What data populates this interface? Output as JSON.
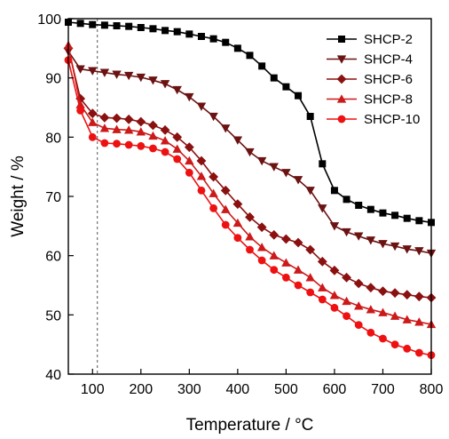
{
  "chart_data": {
    "type": "line",
    "xlabel": "Temperature / °C",
    "ylabel": "Weight / %",
    "xlim": [
      50,
      800
    ],
    "ylim": [
      40,
      100
    ],
    "xticks": [
      100,
      200,
      300,
      400,
      500,
      600,
      700,
      800
    ],
    "yticks": [
      40,
      50,
      60,
      70,
      80,
      90,
      100
    ],
    "grid": false,
    "legend_position": "top-right",
    "reference_line": {
      "x": 110,
      "style": "dashed"
    },
    "series": [
      {
        "name": "SHCP-2",
        "color": "#000000",
        "marker": "square",
        "x": [
          50,
          75,
          100,
          125,
          150,
          175,
          200,
          225,
          250,
          275,
          300,
          325,
          350,
          375,
          400,
          425,
          450,
          475,
          500,
          525,
          550,
          575,
          600,
          625,
          650,
          675,
          700,
          725,
          750,
          775,
          800
        ],
        "y": [
          99.4,
          99.2,
          99.0,
          98.9,
          98.8,
          98.7,
          98.5,
          98.3,
          98.0,
          97.8,
          97.4,
          97.0,
          96.6,
          96.0,
          95.0,
          93.8,
          92.0,
          90.0,
          88.5,
          87.0,
          83.5,
          75.5,
          71.0,
          69.5,
          68.5,
          67.8,
          67.2,
          66.8,
          66.3,
          65.9,
          65.6
        ]
      },
      {
        "name": "SHCP-4",
        "color": "#6b1212",
        "marker": "triangle-down",
        "x": [
          50,
          75,
          100,
          125,
          150,
          175,
          200,
          225,
          250,
          275,
          300,
          325,
          350,
          375,
          400,
          425,
          450,
          475,
          500,
          525,
          550,
          575,
          600,
          625,
          650,
          675,
          700,
          725,
          750,
          775,
          800
        ],
        "y": [
          94.5,
          91.5,
          91.2,
          90.9,
          90.6,
          90.4,
          90.1,
          89.6,
          89.0,
          88.0,
          86.8,
          85.2,
          83.5,
          81.5,
          79.5,
          77.5,
          76.0,
          75.0,
          74.0,
          72.8,
          71.0,
          68.0,
          65.0,
          64.0,
          63.3,
          62.6,
          62.0,
          61.6,
          61.1,
          60.8,
          60.4
        ]
      },
      {
        "name": "SHCP-6",
        "color": "#8b1010",
        "marker": "diamond",
        "x": [
          50,
          75,
          100,
          125,
          150,
          175,
          200,
          225,
          250,
          275,
          300,
          325,
          350,
          375,
          400,
          425,
          450,
          475,
          500,
          525,
          550,
          575,
          600,
          625,
          650,
          675,
          700,
          725,
          750,
          775,
          800
        ],
        "y": [
          95.0,
          86.5,
          84.0,
          83.3,
          83.2,
          83.0,
          82.6,
          82.0,
          81.2,
          80.0,
          78.3,
          76.0,
          73.3,
          71.0,
          68.7,
          66.5,
          64.8,
          63.5,
          62.8,
          62.2,
          61.0,
          59.0,
          57.5,
          56.3,
          55.3,
          54.6,
          54.0,
          53.7,
          53.4,
          53.1,
          52.9
        ]
      },
      {
        "name": "SHCP-8",
        "color": "#cc1a1a",
        "marker": "triangle-up",
        "x": [
          50,
          75,
          100,
          125,
          150,
          175,
          200,
          225,
          250,
          275,
          300,
          325,
          350,
          375,
          400,
          425,
          450,
          475,
          500,
          525,
          550,
          575,
          600,
          625,
          650,
          675,
          700,
          725,
          750,
          775,
          800
        ],
        "y": [
          95.5,
          85.5,
          82.5,
          81.5,
          81.3,
          81.2,
          80.9,
          80.2,
          79.4,
          78.0,
          76.0,
          73.4,
          70.5,
          67.8,
          65.5,
          63.2,
          61.4,
          60.0,
          58.8,
          57.6,
          56.3,
          54.6,
          53.3,
          52.3,
          51.5,
          50.9,
          50.4,
          49.8,
          49.2,
          48.8,
          48.4
        ]
      },
      {
        "name": "SHCP-10",
        "color": "#ee1111",
        "marker": "circle",
        "x": [
          50,
          75,
          100,
          125,
          150,
          175,
          200,
          225,
          250,
          275,
          300,
          325,
          350,
          375,
          400,
          425,
          450,
          475,
          500,
          525,
          550,
          575,
          600,
          625,
          650,
          675,
          700,
          725,
          750,
          775,
          800
        ],
        "y": [
          93.0,
          84.5,
          80.0,
          79.0,
          78.9,
          78.7,
          78.5,
          78.1,
          77.5,
          76.3,
          74.0,
          71.0,
          68.0,
          65.2,
          63.0,
          61.0,
          59.2,
          57.6,
          56.3,
          55.0,
          53.8,
          52.6,
          51.2,
          49.8,
          48.3,
          47.0,
          46.0,
          45.0,
          44.3,
          43.6,
          43.2
        ]
      }
    ]
  }
}
